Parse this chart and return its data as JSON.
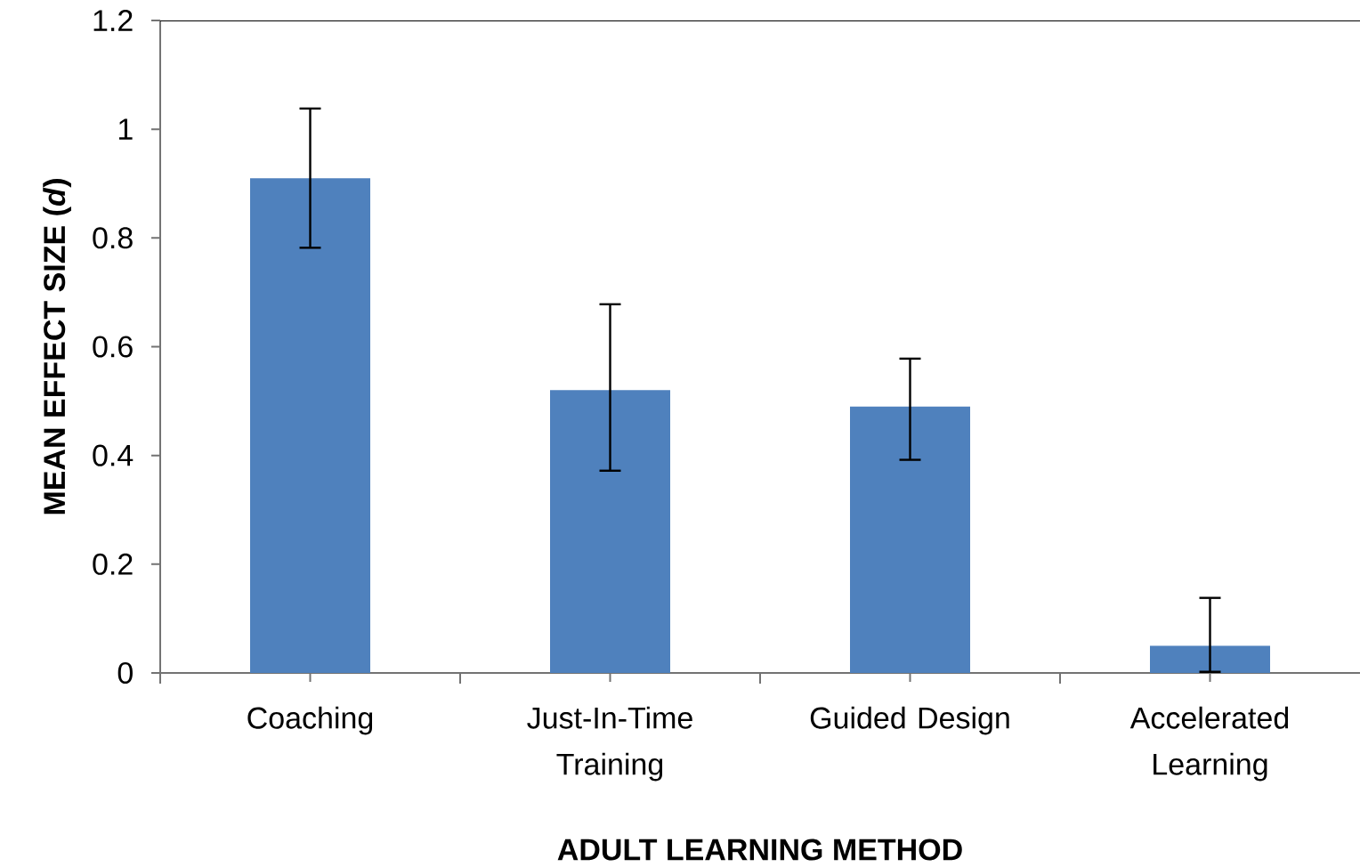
{
  "chart_data": {
    "type": "bar",
    "xlabel": "ADULT LEARNING METHOD",
    "ylabel": "MEAN EFFECT SIZE (*d*)",
    "categories": [
      "Coaching",
      "Just-In-Time Training",
      "Guided Design",
      "Accelerated Learning"
    ],
    "values": [
      0.91,
      0.52,
      0.49,
      0.05
    ],
    "errors": [
      [
        0.78,
        1.04
      ],
      [
        0.37,
        0.68
      ],
      [
        0.39,
        0.58
      ],
      [
        0,
        0.14
      ]
    ],
    "color": "#4f81bd",
    "ylim": [
      0,
      1.2
    ],
    "yticks": [
      0,
      0.2,
      0.4,
      0.6,
      0.8,
      1,
      1.2
    ]
  }
}
